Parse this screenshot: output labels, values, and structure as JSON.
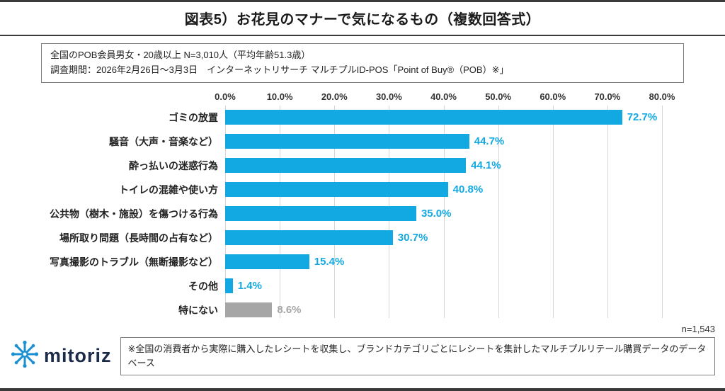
{
  "title": "図表5）お花見のマナーで気になるもの（複数回答式）",
  "info_box": {
    "line1": "全国のPOB会員男女・20歳以上 N=3,010人（平均年齢51.3歳）",
    "line2": "調査期間：2026年2月26日～3月3日　インターネットリサーチ マルチプルID-POS「Point of Buy®（POB）※」"
  },
  "chart_data": {
    "type": "bar",
    "orientation": "horizontal",
    "title": "お花見のマナーで気になるもの（複数回答式）",
    "categories": [
      "ゴミの放置",
      "騒音（大声・音楽など）",
      "酔っ払いの迷惑行為",
      "トイレの混雑や使い方",
      "公共物（樹木・施設）を傷つける行為",
      "場所取り問題（長時間の占有など）",
      "写真撮影のトラブル（無断撮影など）",
      "その他",
      "特にない"
    ],
    "values": [
      72.7,
      44.7,
      44.1,
      40.8,
      35.0,
      30.7,
      15.4,
      1.4,
      8.6
    ],
    "value_labels": [
      "72.7%",
      "44.7%",
      "44.1%",
      "40.8%",
      "35.0%",
      "30.7%",
      "15.4%",
      "1.4%",
      "8.6%"
    ],
    "x_ticks": [
      "0.0%",
      "10.0%",
      "20.0%",
      "30.0%",
      "40.0%",
      "50.0%",
      "60.0%",
      "70.0%",
      "80.0%"
    ],
    "x_tick_values": [
      0,
      10,
      20,
      30,
      40,
      50,
      60,
      70,
      80
    ],
    "xlim": [
      0,
      80
    ],
    "grid": true,
    "bar_color": "#12a9e2",
    "muted_color": "#a6a6a6",
    "muted_categories": [
      "特にない"
    ],
    "n_label": "n=1,543"
  },
  "footer": {
    "logo_text": "mitoriz",
    "note": "※全国の消費者から実際に購入したレシートを収集し、ブランドカテゴリごとにレシートを集計したマルチプルリテール購買データのデータベース"
  }
}
